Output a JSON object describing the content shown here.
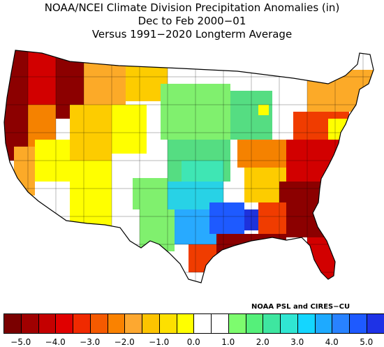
{
  "title": {
    "line1": "NOAA/NCEI Climate Division Precipitation Anomalies (in)",
    "line2": "Dec to Feb 2000−01",
    "line3": "Versus 1991−2020 Longterm Average"
  },
  "credit": "NOAA PSL and CIRES−CU",
  "legend": {
    "colors": [
      "#7a0000",
      "#a00000",
      "#c40000",
      "#e00000",
      "#f02a00",
      "#f55a00",
      "#fa8200",
      "#fda830",
      "#fdc400",
      "#fde000",
      "#ffff00",
      "#ffffff",
      "#ffffff",
      "#7dfc6e",
      "#55f07a",
      "#3ee6a0",
      "#30e6d2",
      "#14d6ff",
      "#1eaaff",
      "#2882ff",
      "#1e5aff",
      "#1e32e6"
    ],
    "ticks": [
      "−5.0",
      "−4.0",
      "−3.0",
      "−2.0",
      "−1.0",
      "0.0",
      "1.0",
      "2.0",
      "3.0",
      "4.0",
      "5.0"
    ]
  },
  "palette": {
    "dark_red": "#8c0000",
    "red": "#d20000",
    "red_orange": "#f03c00",
    "orange": "#f58200",
    "light_orange": "#fcaa28",
    "gold": "#fdcc00",
    "yellow": "#ffff00",
    "white": "#ffffff",
    "light_green": "#80f06e",
    "green": "#55dd82",
    "teal": "#3fe6b4",
    "cyan": "#28d2e6",
    "sky": "#28aaff",
    "blue": "#1e5aff",
    "deep_blue": "#1e32dc"
  }
}
